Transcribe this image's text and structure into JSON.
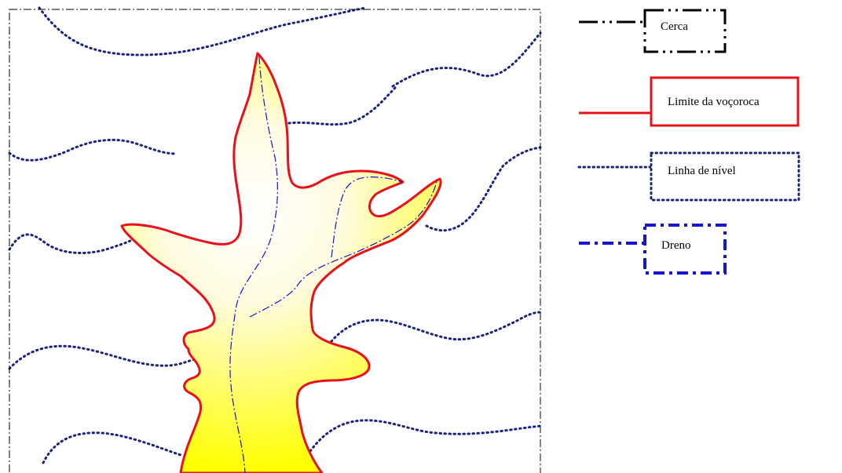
{
  "legend": {
    "fence_label": "Cerca",
    "gully_label": "Limite da voçoroca",
    "contour_label": "Linha de nível",
    "drain_label": "Dreno"
  },
  "colors": {
    "fence": "#000000",
    "gully_boundary": "#e8101a",
    "contour": "#1a237e",
    "drain": "#1414d4",
    "gully_fill_center": "#ffffff",
    "gully_fill_edge": "#ffff00"
  }
}
